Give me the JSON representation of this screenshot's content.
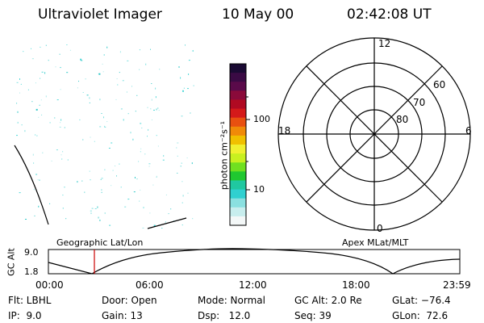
{
  "header": {
    "instrument": "Ultraviolet Imager",
    "date": "10 May 00",
    "time": "02:42:08 UT"
  },
  "colorbar": {
    "unit_label": "photon cm⁻²s⁻¹",
    "tick_100": "100",
    "tick_10": "10",
    "colors": [
      "#1a0a33",
      "#3a0a44",
      "#5a0a4a",
      "#8a0a3a",
      "#b00a22",
      "#d41a1a",
      "#e85010",
      "#f08a08",
      "#f0c000",
      "#f0f030",
      "#c8f020",
      "#70e020",
      "#20c830",
      "#20c8a0",
      "#30d0d0",
      "#8ae0e0",
      "#c8eeee",
      "#f4f8f8"
    ]
  },
  "polar": {
    "lt_labels": {
      "noon": "12",
      "dusk": "18",
      "dawn": "6",
      "midnight": "0"
    },
    "lat_labels": [
      "60",
      "70",
      "80"
    ]
  },
  "map": {
    "left_label": "Geographic Lat/Lon",
    "right_label": "Apex MLat/MLT"
  },
  "altitude_plot": {
    "y_label": "GC Alt",
    "y_ticks": [
      "9.0",
      "1.8"
    ],
    "x_ticks": [
      "00:00",
      "06:00",
      "12:00",
      "18:00",
      "23:59"
    ],
    "marker_time": "02:42",
    "marker_color": "#cc0000"
  },
  "info": {
    "filter": "Flt: LBHL",
    "door": "Door: Open",
    "mode": "Mode: Normal",
    "gc_alt": "GC Alt: 2.0 Re",
    "glat": "GLat: −76.4",
    "ip": "IP:  9.0",
    "gain": "Gain: 13",
    "dsp": "Dsp:   12.0",
    "seq": "Seq: 39",
    "glon": "GLon:  72.6"
  }
}
